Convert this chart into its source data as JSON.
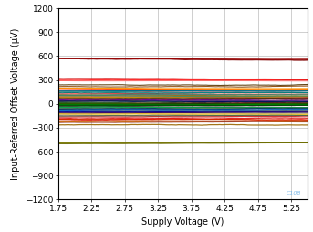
{
  "xlabel": "Supply Voltage (V)",
  "ylabel": "Input-Referred Offset Voltage (µV)",
  "xlim": [
    1.75,
    5.5
  ],
  "ylim": [
    -1200,
    1200
  ],
  "xticks": [
    1.75,
    2.25,
    2.75,
    3.25,
    3.75,
    4.25,
    4.75,
    5.25
  ],
  "yticks": [
    -1200,
    -900,
    -600,
    -300,
    0,
    300,
    600,
    900,
    1200
  ],
  "watermark": "C108",
  "background_color": "#ffffff",
  "grid_color": "#c8c8c8",
  "traces": [
    {
      "color": "#7f0000",
      "y0": 570,
      "y1": 555,
      "lw": 1.1
    },
    {
      "color": "#990000",
      "y0": 570,
      "y1": 565,
      "lw": 0.9
    },
    {
      "color": "#cc0000",
      "y0": 315,
      "y1": 310,
      "lw": 1.2
    },
    {
      "color": "#dd1111",
      "y0": 310,
      "y1": 305,
      "lw": 0.9
    },
    {
      "color": "#ff2222",
      "y0": 295,
      "y1": 300,
      "lw": 0.9
    },
    {
      "color": "#ff6666",
      "y0": 290,
      "y1": 295,
      "lw": 0.8
    },
    {
      "color": "#ff0000",
      "y0": 195,
      "y1": 175,
      "lw": 0.9
    },
    {
      "color": "#ee1111",
      "y0": 155,
      "y1": 155,
      "lw": 0.8
    },
    {
      "color": "#ff3333",
      "y0": 125,
      "y1": 130,
      "lw": 0.8
    },
    {
      "color": "#cc4444",
      "y0": 100,
      "y1": 100,
      "lw": 0.8
    },
    {
      "color": "#dd2222",
      "y0": 85,
      "y1": 87,
      "lw": 0.8
    },
    {
      "color": "#bb0000",
      "y0": 65,
      "y1": 68,
      "lw": 0.8
    },
    {
      "color": "#ff8888",
      "y0": 50,
      "y1": 52,
      "lw": 0.8
    },
    {
      "color": "#ff9999",
      "y0": 35,
      "y1": 36,
      "lw": 0.8
    },
    {
      "color": "#cc6666",
      "y0": 22,
      "y1": 23,
      "lw": 0.8
    },
    {
      "color": "#aa4444",
      "y0": 12,
      "y1": 13,
      "lw": 0.8
    },
    {
      "color": "#993333",
      "y0": 5,
      "y1": 6,
      "lw": 0.8
    },
    {
      "color": "#220000",
      "y0": 2,
      "y1": 2,
      "lw": 1.0
    },
    {
      "color": "#000000",
      "y0": -1,
      "y1": -1,
      "lw": 1.2
    },
    {
      "color": "#111111",
      "y0": -5,
      "y1": -5,
      "lw": 1.0
    },
    {
      "color": "#1a1a1a",
      "y0": -10,
      "y1": -10,
      "lw": 0.9
    },
    {
      "color": "#222222",
      "y0": -18,
      "y1": -18,
      "lw": 0.9
    },
    {
      "color": "#333333",
      "y0": -28,
      "y1": -28,
      "lw": 0.8
    },
    {
      "color": "#3d3d3d",
      "y0": -38,
      "y1": -38,
      "lw": 0.8
    },
    {
      "color": "#444444",
      "y0": -50,
      "y1": -50,
      "lw": 0.8
    },
    {
      "color": "#555555",
      "y0": -60,
      "y1": -60,
      "lw": 0.8
    },
    {
      "color": "#4d4d4d",
      "y0": -72,
      "y1": -72,
      "lw": 0.8
    },
    {
      "color": "#666666",
      "y0": -83,
      "y1": -83,
      "lw": 0.8
    },
    {
      "color": "#5a5a5a",
      "y0": -95,
      "y1": -95,
      "lw": 0.8
    },
    {
      "color": "#777777",
      "y0": -108,
      "y1": -105,
      "lw": 0.8
    },
    {
      "color": "#888888",
      "y0": -120,
      "y1": -118,
      "lw": 0.8
    },
    {
      "color": "#999999",
      "y0": -130,
      "y1": -128,
      "lw": 0.8
    },
    {
      "color": "#aa8888",
      "y0": -142,
      "y1": -140,
      "lw": 0.8
    },
    {
      "color": "#cc2222",
      "y0": -165,
      "y1": -160,
      "lw": 1.0
    },
    {
      "color": "#dd1111",
      "y0": -185,
      "y1": -180,
      "lw": 0.9
    },
    {
      "color": "#ee0000",
      "y0": -195,
      "y1": -195,
      "lw": 0.8
    },
    {
      "color": "#bb1111",
      "y0": -215,
      "y1": -210,
      "lw": 0.8
    },
    {
      "color": "#993322",
      "y0": -235,
      "y1": -230,
      "lw": 0.8
    },
    {
      "color": "#cc3300",
      "y0": -195,
      "y1": -195,
      "lw": 0.8
    },
    {
      "color": "#cc6600",
      "y0": -225,
      "y1": -220,
      "lw": 0.9
    },
    {
      "color": "#996600",
      "y0": -265,
      "y1": -260,
      "lw": 0.9
    },
    {
      "color": "#808000",
      "y0": -490,
      "y1": -480,
      "lw": 1.1
    },
    {
      "color": "#6b6b00",
      "y0": -500,
      "y1": -495,
      "lw": 1.0
    },
    {
      "color": "#336600",
      "y0": 3,
      "y1": 5,
      "lw": 0.8
    },
    {
      "color": "#006600",
      "y0": -8,
      "y1": -6,
      "lw": 0.8
    },
    {
      "color": "#009900",
      "y0": -15,
      "y1": -14,
      "lw": 0.8
    },
    {
      "color": "#004400",
      "y0": -25,
      "y1": -24,
      "lw": 0.8
    },
    {
      "color": "#007722",
      "y0": 18,
      "y1": 20,
      "lw": 0.8
    },
    {
      "color": "#00aa44",
      "y0": -42,
      "y1": -40,
      "lw": 0.8
    },
    {
      "color": "#336633",
      "y0": 28,
      "y1": 30,
      "lw": 0.8
    },
    {
      "color": "#224422",
      "y0": 40,
      "y1": 42,
      "lw": 0.8
    },
    {
      "color": "#558855",
      "y0": -55,
      "y1": -53,
      "lw": 0.8
    },
    {
      "color": "#003366",
      "y0": -65,
      "y1": -63,
      "lw": 0.8
    },
    {
      "color": "#0066cc",
      "y0": -78,
      "y1": -76,
      "lw": 0.8
    },
    {
      "color": "#0000cc",
      "y0": -90,
      "y1": -88,
      "lw": 0.8
    },
    {
      "color": "#000099",
      "y0": -102,
      "y1": -100,
      "lw": 0.8
    },
    {
      "color": "#000066",
      "y0": 32,
      "y1": 34,
      "lw": 0.8
    },
    {
      "color": "#330066",
      "y0": -115,
      "y1": -113,
      "lw": 0.8
    },
    {
      "color": "#5500aa",
      "y0": 48,
      "y1": 50,
      "lw": 0.8
    },
    {
      "color": "#660099",
      "y0": 60,
      "y1": 62,
      "lw": 0.8
    },
    {
      "color": "#553300",
      "y0": 72,
      "y1": 74,
      "lw": 0.8
    },
    {
      "color": "#996633",
      "y0": 78,
      "y1": 80,
      "lw": 0.8
    },
    {
      "color": "#cc9900",
      "y0": 90,
      "y1": 92,
      "lw": 0.8
    },
    {
      "color": "#ffcc00",
      "y0": -127,
      "y1": -125,
      "lw": 0.8
    },
    {
      "color": "#aa6600",
      "y0": 112,
      "y1": 114,
      "lw": 0.8
    },
    {
      "color": "#ff6600",
      "y0": 175,
      "y1": 178,
      "lw": 0.8
    },
    {
      "color": "#ff9900",
      "y0": 198,
      "y1": 200,
      "lw": 0.8
    },
    {
      "color": "#884400",
      "y0": 218,
      "y1": 220,
      "lw": 0.8
    },
    {
      "color": "#553300",
      "y0": 238,
      "y1": 240,
      "lw": 0.8
    },
    {
      "color": "#006666",
      "y0": 138,
      "y1": 140,
      "lw": 0.8
    },
    {
      "color": "#008888",
      "y0": 145,
      "y1": 147,
      "lw": 0.8
    },
    {
      "color": "#449999",
      "y0": 155,
      "y1": 158,
      "lw": 0.8
    },
    {
      "color": "#006688",
      "y0": 165,
      "y1": 167,
      "lw": 0.8
    },
    {
      "color": "#447766",
      "y0": 110,
      "y1": 112,
      "lw": 0.8
    },
    {
      "color": "#338866",
      "y0": 102,
      "y1": 104,
      "lw": 0.8
    },
    {
      "color": "#446644",
      "y0": -152,
      "y1": -150,
      "lw": 0.8
    }
  ]
}
